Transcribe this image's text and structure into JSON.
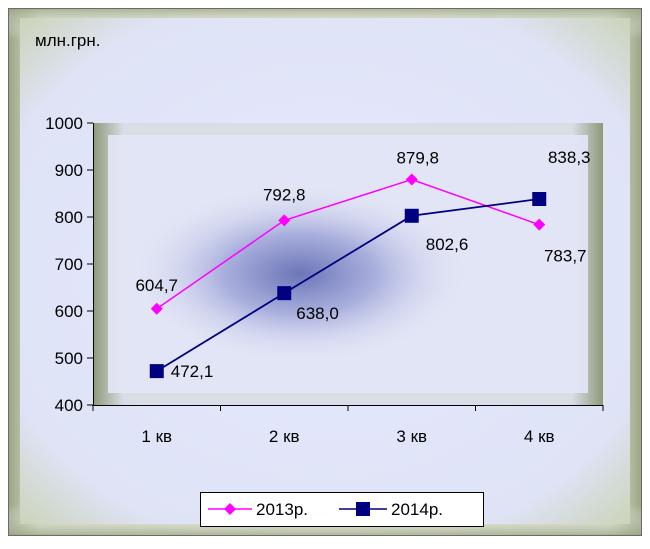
{
  "chart_data": {
    "type": "line",
    "unit_label": "млн.грн.",
    "categories": [
      "1 кв",
      "2 кв",
      "3 кв",
      "4 кв"
    ],
    "ylim": [
      400,
      1000
    ],
    "yticks": [
      400,
      500,
      600,
      700,
      800,
      900,
      1000
    ],
    "ytick_labels": [
      "400",
      "500",
      "600",
      "700",
      "800",
      "900",
      "1000"
    ],
    "legend_position": "bottom",
    "series": [
      {
        "name": "2013р.",
        "values": [
          604.7,
          792.8,
          879.8,
          783.7
        ],
        "labels": [
          "604,7",
          "792,8",
          "879,8",
          "783,7"
        ],
        "color": "#ff00ff",
        "marker": "diamond"
      },
      {
        "name": "2014р.",
        "values": [
          472.1,
          638.0,
          802.6,
          838.3
        ],
        "labels": [
          "472,1",
          "638,0",
          "802,6",
          "838,3"
        ],
        "color": "#000080",
        "marker": "square"
      }
    ]
  }
}
